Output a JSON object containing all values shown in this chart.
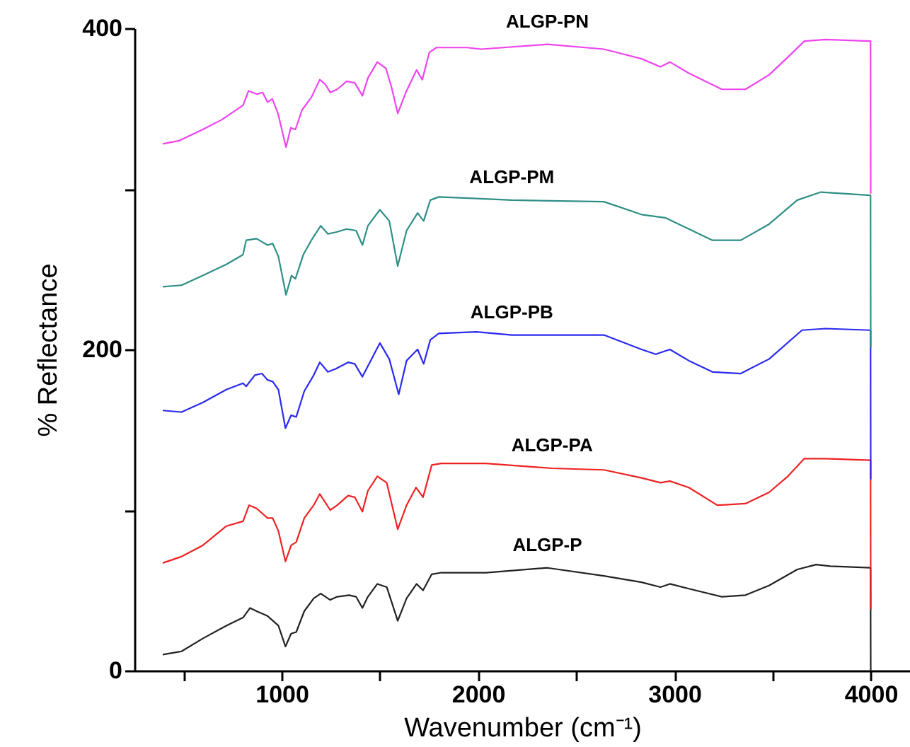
{
  "chart_data": {
    "type": "line",
    "xlabel": "Wavenumber (cm⁻¹)",
    "ylabel": "% Reflectance",
    "xlim": [
      250,
      4200
    ],
    "ylim": [
      0,
      400
    ],
    "xticks": [
      {
        "value": 500,
        "label": null
      },
      1000,
      {
        "value": 1500,
        "label": null
      },
      2000,
      {
        "value": 2500,
        "label": null
      },
      3000,
      {
        "value": 3500,
        "label": null
      },
      4000
    ],
    "yticks": [
      0,
      {
        "value": 100,
        "label": null
      },
      200,
      {
        "value": 300,
        "label": null
      },
      400
    ],
    "grid": false,
    "marker": "none",
    "line_style": "solid",
    "series": [
      {
        "name": "ALGP-P",
        "color": "#222222",
        "x": [
          394,
          490,
          598,
          718,
          803,
          839,
          872,
          928,
          983,
          1019,
          1048,
          1074,
          1115,
          1163,
          1199,
          1247,
          1283,
          1343,
          1379,
          1411,
          1439,
          1487,
          1535,
          1591,
          1636,
          1687,
          1720,
          1764,
          1812,
          2040,
          2353,
          2641,
          2833,
          2929,
          2977,
          3074,
          3242,
          3362,
          3482,
          3626,
          3722,
          3794,
          3999,
          4000
        ],
        "values": [
          10,
          12,
          20,
          28,
          33,
          39,
          37,
          34,
          28,
          15,
          23,
          24,
          37,
          45,
          48,
          44,
          46,
          47,
          46,
          39,
          46,
          54,
          52,
          31,
          45,
          54,
          50,
          60,
          61,
          61,
          64,
          59,
          55,
          52,
          54,
          51,
          46,
          47,
          53,
          63,
          66,
          65,
          64,
          0
        ]
      },
      {
        "name": "ALGP-PA",
        "color": "#ee2222",
        "x": [
          394,
          490,
          598,
          718,
          803,
          834,
          872,
          928,
          954,
          983,
          1019,
          1048,
          1074,
          1115,
          1163,
          1194,
          1247,
          1283,
          1338,
          1372,
          1411,
          1439,
          1487,
          1535,
          1591,
          1636,
          1684,
          1720,
          1764,
          1812,
          2040,
          2377,
          2641,
          2833,
          2929,
          2977,
          3074,
          3218,
          3362,
          3482,
          3578,
          3662,
          3770,
          3999,
          4000
        ],
        "values": [
          67,
          71,
          78,
          90,
          93,
          103,
          101,
          95,
          95,
          87,
          68,
          78,
          80,
          95,
          103,
          110,
          100,
          103,
          109,
          108,
          99,
          112,
          121,
          117,
          88,
          103,
          114,
          108,
          128,
          129,
          129,
          126,
          125,
          120,
          117,
          118,
          114,
          103,
          104,
          111,
          121,
          132,
          132,
          131,
          38
        ]
      },
      {
        "name": "ALGP-PB",
        "color": "#2a2aee",
        "x": [
          394,
          490,
          598,
          718,
          803,
          819,
          863,
          899,
          928,
          954,
          983,
          1019,
          1048,
          1074,
          1115,
          1163,
          1194,
          1235,
          1276,
          1338,
          1372,
          1411,
          1500,
          1548,
          1596,
          1636,
          1692,
          1723,
          1757,
          1800,
          1992,
          2172,
          2641,
          2833,
          2905,
          2977,
          3074,
          3194,
          3338,
          3482,
          3650,
          3770,
          3999,
          4000
        ],
        "values": [
          162,
          161,
          167,
          175,
          179,
          177,
          184,
          185,
          181,
          180,
          175,
          151,
          159,
          158,
          174,
          184,
          192,
          186,
          188,
          192,
          191,
          183,
          204,
          194,
          172,
          193,
          200,
          191,
          206,
          210,
          211,
          209,
          209,
          200,
          197,
          200,
          193,
          186,
          185,
          194,
          212,
          213,
          212,
          119
        ]
      },
      {
        "name": "ALGP-PM",
        "color": "#2e8f86",
        "x": [
          394,
          490,
          598,
          718,
          803,
          819,
          872,
          928,
          954,
          983,
          1022,
          1050,
          1070,
          1110,
          1151,
          1199,
          1235,
          1276,
          1331,
          1379,
          1411,
          1439,
          1500,
          1548,
          1591,
          1636,
          1692,
          1723,
          1757,
          1800,
          1992,
          2172,
          2641,
          2833,
          2953,
          3074,
          3194,
          3338,
          3482,
          3626,
          3746,
          3999,
          4000
        ],
        "values": [
          239,
          240,
          246,
          253,
          259,
          268,
          269,
          265,
          266,
          258,
          234,
          246,
          244,
          259,
          268,
          277,
          272,
          273,
          275,
          274,
          265,
          277,
          287,
          280,
          252,
          274,
          285,
          280,
          293,
          295,
          294,
          293,
          292,
          284,
          282,
          275,
          268,
          268,
          278,
          293,
          298,
          296,
          201
        ]
      },
      {
        "name": "ALGP-PN",
        "color": "#ee44ee",
        "x": [
          394,
          478,
          598,
          694,
          803,
          831,
          872,
          903,
          928,
          952,
          981,
          1022,
          1046,
          1070,
          1103,
          1151,
          1194,
          1223,
          1247,
          1283,
          1331,
          1372,
          1411,
          1439,
          1487,
          1531,
          1560,
          1591,
          1632,
          1687,
          1716,
          1752,
          1788,
          1944,
          2016,
          2353,
          2641,
          2833,
          2929,
          2977,
          3074,
          3242,
          3362,
          3482,
          3578,
          3662,
          3770,
          3999,
          4000
        ],
        "values": [
          328,
          330,
          337,
          343,
          352,
          361,
          359,
          360,
          354,
          356,
          347,
          326,
          338,
          337,
          349,
          357,
          368,
          365,
          360,
          362,
          367,
          366,
          358,
          369,
          379,
          375,
          363,
          347,
          360,
          374,
          368,
          385,
          388,
          388,
          387,
          390,
          387,
          381,
          376,
          379,
          372,
          362,
          362,
          371,
          382,
          392,
          393,
          392,
          297
        ]
      }
    ]
  }
}
